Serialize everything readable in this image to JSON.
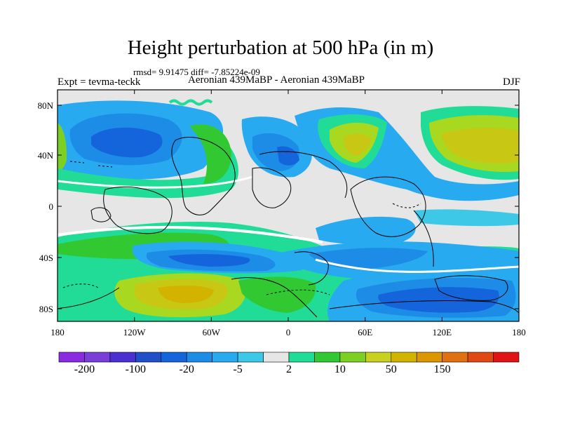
{
  "title": "Height perturbation at 500 hPa (in m)",
  "stats": "rmsd= 9.91475  diff= -7.85224e-09",
  "left_label": "Expt = tevma-teckk",
  "center_label": "Aeronian 439MaBP - Aeronian 439MaBP",
  "right_label": "DJF",
  "map": {
    "lat_ticks": [
      "80N",
      "40N",
      "0",
      "40S",
      "80S"
    ],
    "lon_ticks": [
      "180",
      "120W",
      "60W",
      "0",
      "60E",
      "120E",
      "180"
    ]
  },
  "colorbar": {
    "labels": [
      "-200",
      "-100",
      "-20",
      "-5",
      "2",
      "10",
      "50",
      "150"
    ],
    "colors": [
      "#8a2be2",
      "#7a3fd8",
      "#4b2fd0",
      "#2050c8",
      "#1464dc",
      "#1c8ce6",
      "#28aaf0",
      "#3cc8e6",
      "#e6e6e6",
      "#20dc96",
      "#32c832",
      "#7cd024",
      "#c8d020",
      "#d2b400",
      "#dc9600",
      "#e07010",
      "#e04814",
      "#e01414"
    ]
  },
  "palette": {
    "gray": "#e6e6e6",
    "white": "#ffffff",
    "cyan": "#3cc8e6",
    "skyblue": "#28aaf0",
    "blue": "#1c8ce6",
    "deepblue": "#1464dc",
    "navy": "#2050c8",
    "mint": "#20dc96",
    "green": "#32c832",
    "lime": "#a8d820",
    "olive": "#c8c814",
    "gold": "#d2b400"
  }
}
